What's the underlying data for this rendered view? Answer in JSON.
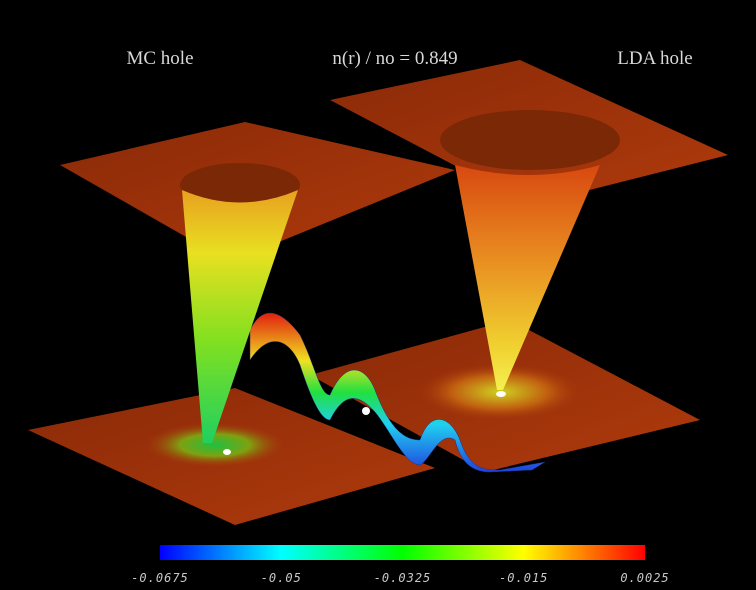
{
  "left_label": "MC hole",
  "center_label": "n(r) / no = 0.849",
  "right_label": "LDA hole",
  "colorbar": {
    "range": [
      -0.0675,
      0.0025
    ],
    "ticks": [
      -0.0675,
      -0.05,
      -0.0325,
      -0.015,
      0.0025
    ]
  }
}
